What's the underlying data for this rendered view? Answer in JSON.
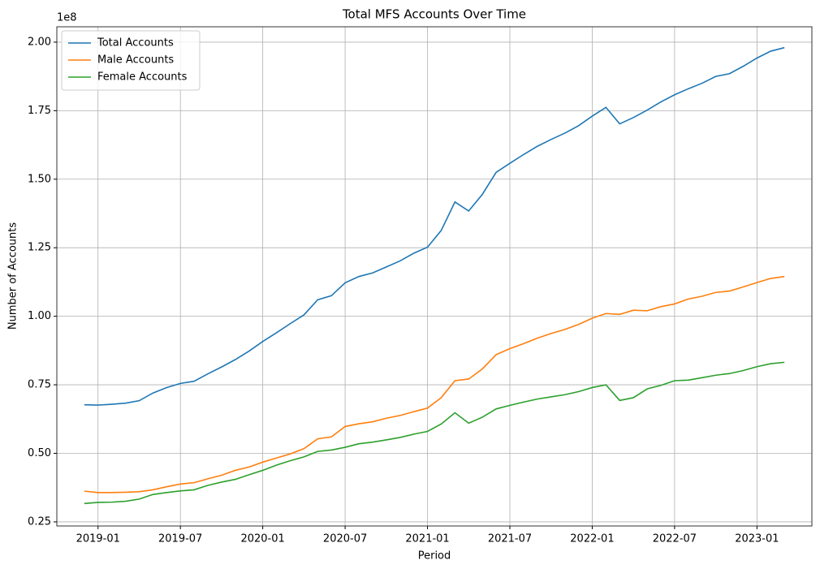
{
  "chart_data": {
    "type": "line",
    "title": "Total MFS Accounts Over Time",
    "xlabel": "Period",
    "ylabel": "Number of Accounts",
    "y_offset_label": "1e8",
    "x": [
      "2018-12",
      "2019-01",
      "2019-02",
      "2019-03",
      "2019-04",
      "2019-05",
      "2019-06",
      "2019-07",
      "2019-08",
      "2019-09",
      "2019-10",
      "2019-11",
      "2019-12",
      "2020-01",
      "2020-02",
      "2020-03",
      "2020-04",
      "2020-05",
      "2020-06",
      "2020-07",
      "2020-08",
      "2020-09",
      "2020-10",
      "2020-11",
      "2020-12",
      "2021-01",
      "2021-02",
      "2021-03",
      "2021-04",
      "2021-05",
      "2021-06",
      "2021-07",
      "2021-08",
      "2021-09",
      "2021-10",
      "2021-11",
      "2021-12",
      "2022-01",
      "2022-02",
      "2022-03",
      "2022-04",
      "2022-05",
      "2022-06",
      "2022-07",
      "2022-08",
      "2022-09",
      "2022-10",
      "2022-11",
      "2022-12",
      "2023-01",
      "2023-02",
      "2023-03"
    ],
    "series": [
      {
        "name": "Total Accounts",
        "color": "#1f77b4",
        "values": [
          67700000,
          67600000,
          67900000,
          68300000,
          69200000,
          72000000,
          74000000,
          75500000,
          76300000,
          79000000,
          81500000,
          84200000,
          87300000,
          90800000,
          94000000,
          97300000,
          100500000,
          106000000,
          107500000,
          112200000,
          114500000,
          115800000,
          118000000,
          120200000,
          123000000,
          125200000,
          131300000,
          141700000,
          138400000,
          144500000,
          152500000,
          155800000,
          159000000,
          162000000,
          164500000,
          166800000,
          169500000,
          173000000,
          176200000,
          170200000,
          172500000,
          175200000,
          178200000,
          180800000,
          183000000,
          185000000,
          187500000,
          188500000,
          191200000,
          194200000,
          196700000,
          198000000
        ]
      },
      {
        "name": "Male Accounts",
        "color": "#ff7f0e",
        "values": [
          36200000,
          35700000,
          35700000,
          35800000,
          36000000,
          36700000,
          37800000,
          38800000,
          39300000,
          40700000,
          42000000,
          43800000,
          45000000,
          46800000,
          48300000,
          49800000,
          51700000,
          55300000,
          56000000,
          59800000,
          60800000,
          61500000,
          62800000,
          63800000,
          65200000,
          66500000,
          70300000,
          76500000,
          77100000,
          80800000,
          86000000,
          88200000,
          90000000,
          92000000,
          93700000,
          95200000,
          97000000,
          99300000,
          101000000,
          100700000,
          102200000,
          102000000,
          103500000,
          104500000,
          106300000,
          107300000,
          108700000,
          109200000,
          110700000,
          112300000,
          113800000,
          114500000
        ]
      },
      {
        "name": "Female Accounts",
        "color": "#2ca02c",
        "values": [
          31700000,
          32100000,
          32200000,
          32500000,
          33300000,
          35000000,
          35700000,
          36300000,
          36700000,
          38300000,
          39500000,
          40500000,
          42200000,
          43800000,
          45700000,
          47300000,
          48700000,
          50700000,
          51200000,
          52200000,
          53500000,
          54100000,
          54900000,
          55800000,
          57000000,
          58000000,
          60700000,
          64800000,
          61000000,
          63200000,
          66200000,
          67500000,
          68700000,
          69800000,
          70600000,
          71400000,
          72500000,
          74000000,
          75000000,
          69300000,
          70300000,
          73500000,
          74800000,
          76500000,
          76700000,
          77600000,
          78500000,
          79100000,
          80200000,
          81600000,
          82700000,
          83200000
        ]
      }
    ],
    "xlim": [
      "2018-10",
      "2023-05"
    ],
    "xticks": [
      "2019-01",
      "2019-07",
      "2020-01",
      "2020-07",
      "2021-01",
      "2021-07",
      "2022-01",
      "2022-07",
      "2023-01"
    ],
    "ylim": [
      23500000,
      205600000
    ],
    "yticks": [
      {
        "value": 25000000,
        "label": "0.25"
      },
      {
        "value": 50000000,
        "label": "0.50"
      },
      {
        "value": 75000000,
        "label": "0.75"
      },
      {
        "value": 100000000,
        "label": "1.00"
      },
      {
        "value": 125000000,
        "label": "1.25"
      },
      {
        "value": 150000000,
        "label": "1.50"
      },
      {
        "value": 175000000,
        "label": "1.75"
      },
      {
        "value": 200000000,
        "label": "2.00"
      }
    ],
    "grid": true,
    "legend": "upper left"
  }
}
